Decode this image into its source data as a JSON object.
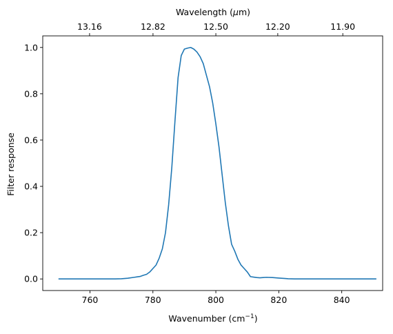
{
  "chart_data": {
    "type": "line",
    "title": "",
    "xlabel": "Wavenumber (cm",
    "xlabel_sup": "−1",
    "xlabel_suffix": ")",
    "ylabel": "Filter response",
    "top_xlabel": "Wavelength (",
    "top_xlabel_mu": "μ",
    "top_xlabel_suffix": "m)",
    "xlim": [
      745,
      853
    ],
    "ylim": [
      -0.05,
      1.05
    ],
    "grid": false,
    "line_color": "#1f77b4",
    "xticks": [
      760,
      780,
      800,
      820,
      840
    ],
    "xtick_labels": [
      "760",
      "780",
      "800",
      "820",
      "840"
    ],
    "yticks": [
      0.0,
      0.2,
      0.4,
      0.6,
      0.8,
      1.0
    ],
    "ytick_labels": [
      "0.0",
      "0.2",
      "0.4",
      "0.6",
      "0.8",
      "1.0"
    ],
    "top_xticks": [
      13.16,
      12.82,
      12.5,
      12.2,
      11.9
    ],
    "top_xtick_labels": [
      "13.16",
      "12.82",
      "12.50",
      "12.20",
      "11.90"
    ],
    "x": [
      750,
      755,
      760,
      765,
      768,
      770,
      772,
      774,
      775,
      776,
      777,
      778,
      779,
      780,
      781,
      782,
      783,
      784,
      785,
      786,
      787,
      788,
      789,
      790,
      791,
      792,
      793,
      794,
      795,
      796,
      797,
      798,
      799,
      800,
      801,
      802,
      803,
      804,
      805,
      806,
      807,
      808,
      809,
      810,
      811,
      812,
      813,
      814,
      815,
      816,
      818,
      820,
      822,
      823,
      825,
      830,
      835,
      840,
      845,
      851
    ],
    "y": [
      0.0,
      0.0,
      0.0,
      0.0,
      0.0,
      0.001,
      0.003,
      0.007,
      0.009,
      0.011,
      0.016,
      0.02,
      0.03,
      0.045,
      0.06,
      0.09,
      0.13,
      0.2,
      0.32,
      0.48,
      0.68,
      0.87,
      0.965,
      0.993,
      0.997,
      1.0,
      0.993,
      0.98,
      0.96,
      0.93,
      0.88,
      0.83,
      0.76,
      0.67,
      0.57,
      0.45,
      0.33,
      0.23,
      0.15,
      0.12,
      0.085,
      0.06,
      0.045,
      0.03,
      0.01,
      0.008,
      0.006,
      0.005,
      0.006,
      0.007,
      0.006,
      0.004,
      0.002,
      0.001,
      0.0,
      0.0,
      0.0,
      0.0,
      0.0,
      0.0
    ]
  }
}
